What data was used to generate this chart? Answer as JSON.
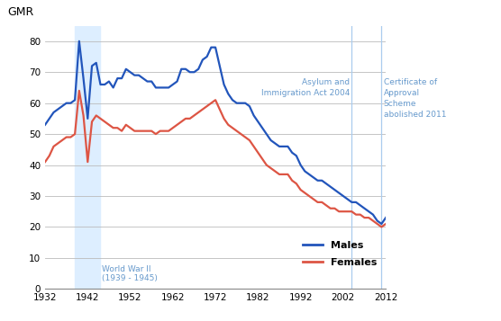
{
  "title_ylabel": "GMR",
  "xlim": [
    1932,
    2012
  ],
  "ylim": [
    0,
    85
  ],
  "yticks": [
    0,
    10,
    20,
    30,
    40,
    50,
    60,
    70,
    80
  ],
  "xticks": [
    1932,
    1942,
    1952,
    1962,
    1972,
    1982,
    1992,
    2002,
    2012
  ],
  "males_color": "#2255bb",
  "females_color": "#dd5544",
  "ww2_color": "#ddeeff",
  "asylum_line_color": "#aaccee",
  "cert_line_color": "#aaccee",
  "annotation_color": "#6699cc",
  "ww2_start": 1939,
  "ww2_end": 1945,
  "asylum_year": 2004,
  "cert_year": 2011,
  "males": [
    [
      1932,
      53
    ],
    [
      1933,
      55
    ],
    [
      1934,
      57
    ],
    [
      1935,
      58
    ],
    [
      1936,
      59
    ],
    [
      1937,
      60
    ],
    [
      1938,
      60
    ],
    [
      1939,
      61
    ],
    [
      1940,
      80
    ],
    [
      1941,
      68
    ],
    [
      1942,
      55
    ],
    [
      1943,
      72
    ],
    [
      1944,
      73
    ],
    [
      1945,
      66
    ],
    [
      1946,
      66
    ],
    [
      1947,
      67
    ],
    [
      1948,
      65
    ],
    [
      1949,
      68
    ],
    [
      1950,
      68
    ],
    [
      1951,
      71
    ],
    [
      1952,
      70
    ],
    [
      1953,
      69
    ],
    [
      1954,
      69
    ],
    [
      1955,
      68
    ],
    [
      1956,
      67
    ],
    [
      1957,
      67
    ],
    [
      1958,
      65
    ],
    [
      1959,
      65
    ],
    [
      1960,
      65
    ],
    [
      1961,
      65
    ],
    [
      1962,
      66
    ],
    [
      1963,
      67
    ],
    [
      1964,
      71
    ],
    [
      1965,
      71
    ],
    [
      1966,
      70
    ],
    [
      1967,
      70
    ],
    [
      1968,
      71
    ],
    [
      1969,
      74
    ],
    [
      1970,
      75
    ],
    [
      1971,
      78
    ],
    [
      1972,
      78
    ],
    [
      1973,
      72
    ],
    [
      1974,
      66
    ],
    [
      1975,
      63
    ],
    [
      1976,
      61
    ],
    [
      1977,
      60
    ],
    [
      1978,
      60
    ],
    [
      1979,
      60
    ],
    [
      1980,
      59
    ],
    [
      1981,
      56
    ],
    [
      1982,
      54
    ],
    [
      1983,
      52
    ],
    [
      1984,
      50
    ],
    [
      1985,
      48
    ],
    [
      1986,
      47
    ],
    [
      1987,
      46
    ],
    [
      1988,
      46
    ],
    [
      1989,
      46
    ],
    [
      1990,
      44
    ],
    [
      1991,
      43
    ],
    [
      1992,
      40
    ],
    [
      1993,
      38
    ],
    [
      1994,
      37
    ],
    [
      1995,
      36
    ],
    [
      1996,
      35
    ],
    [
      1997,
      35
    ],
    [
      1998,
      34
    ],
    [
      1999,
      33
    ],
    [
      2000,
      32
    ],
    [
      2001,
      31
    ],
    [
      2002,
      30
    ],
    [
      2003,
      29
    ],
    [
      2004,
      28
    ],
    [
      2005,
      28
    ],
    [
      2006,
      27
    ],
    [
      2007,
      26
    ],
    [
      2008,
      25
    ],
    [
      2009,
      24
    ],
    [
      2010,
      22
    ],
    [
      2011,
      21
    ],
    [
      2012,
      23
    ]
  ],
  "females": [
    [
      1932,
      41
    ],
    [
      1933,
      43
    ],
    [
      1934,
      46
    ],
    [
      1935,
      47
    ],
    [
      1936,
      48
    ],
    [
      1937,
      49
    ],
    [
      1938,
      49
    ],
    [
      1939,
      50
    ],
    [
      1940,
      64
    ],
    [
      1941,
      56
    ],
    [
      1942,
      41
    ],
    [
      1943,
      54
    ],
    [
      1944,
      56
    ],
    [
      1945,
      55
    ],
    [
      1946,
      54
    ],
    [
      1947,
      53
    ],
    [
      1948,
      52
    ],
    [
      1949,
      52
    ],
    [
      1950,
      51
    ],
    [
      1951,
      53
    ],
    [
      1952,
      52
    ],
    [
      1953,
      51
    ],
    [
      1954,
      51
    ],
    [
      1955,
      51
    ],
    [
      1956,
      51
    ],
    [
      1957,
      51
    ],
    [
      1958,
      50
    ],
    [
      1959,
      51
    ],
    [
      1960,
      51
    ],
    [
      1961,
      51
    ],
    [
      1962,
      52
    ],
    [
      1963,
      53
    ],
    [
      1964,
      54
    ],
    [
      1965,
      55
    ],
    [
      1966,
      55
    ],
    [
      1967,
      56
    ],
    [
      1968,
      57
    ],
    [
      1969,
      58
    ],
    [
      1970,
      59
    ],
    [
      1971,
      60
    ],
    [
      1972,
      61
    ],
    [
      1973,
      58
    ],
    [
      1974,
      55
    ],
    [
      1975,
      53
    ],
    [
      1976,
      52
    ],
    [
      1977,
      51
    ],
    [
      1978,
      50
    ],
    [
      1979,
      49
    ],
    [
      1980,
      48
    ],
    [
      1981,
      46
    ],
    [
      1982,
      44
    ],
    [
      1983,
      42
    ],
    [
      1984,
      40
    ],
    [
      1985,
      39
    ],
    [
      1986,
      38
    ],
    [
      1987,
      37
    ],
    [
      1988,
      37
    ],
    [
      1989,
      37
    ],
    [
      1990,
      35
    ],
    [
      1991,
      34
    ],
    [
      1992,
      32
    ],
    [
      1993,
      31
    ],
    [
      1994,
      30
    ],
    [
      1995,
      29
    ],
    [
      1996,
      28
    ],
    [
      1997,
      28
    ],
    [
      1998,
      27
    ],
    [
      1999,
      26
    ],
    [
      2000,
      26
    ],
    [
      2001,
      25
    ],
    [
      2002,
      25
    ],
    [
      2003,
      25
    ],
    [
      2004,
      25
    ],
    [
      2005,
      24
    ],
    [
      2006,
      24
    ],
    [
      2007,
      23
    ],
    [
      2008,
      23
    ],
    [
      2009,
      22
    ],
    [
      2010,
      21
    ],
    [
      2011,
      20
    ],
    [
      2012,
      21
    ]
  ],
  "ww2_label": "World War II\n(1939 - 1945)",
  "asylum_label": "Asylum and\nImmigration Act 2004",
  "cert_label": "Certificate of\nApproval\nScheme\nabolished 2011"
}
